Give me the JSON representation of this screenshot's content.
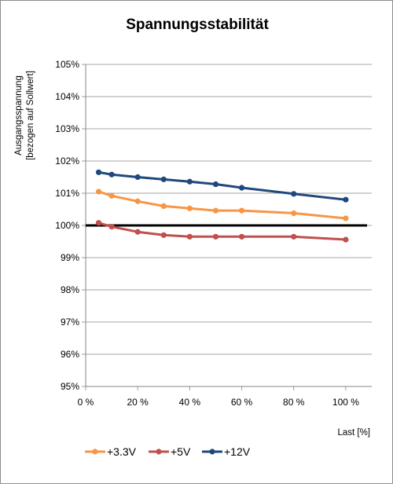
{
  "chart_data": {
    "type": "line",
    "title": "Spannungsstabilität",
    "ylabel_lines": [
      "Ausgangsspannung",
      "[bezogen auf Sollwert]"
    ],
    "xlabel": "Last [%]",
    "xlim": [
      0,
      110
    ],
    "ylim": [
      95,
      105
    ],
    "x_ticks": [
      0,
      20,
      40,
      60,
      80,
      100
    ],
    "x_tick_labels": [
      "0 %",
      "20 %",
      "40 %",
      "60 %",
      "80 %",
      "100 %"
    ],
    "y_ticks": [
      95,
      96,
      97,
      98,
      99,
      100,
      101,
      102,
      103,
      104,
      105
    ],
    "y_tick_labels": [
      "95%",
      "96%",
      "97%",
      "98%",
      "99%",
      "100%",
      "101%",
      "102%",
      "103%",
      "104%",
      "105%"
    ],
    "grid": "horizontal",
    "legend_position": "bottom",
    "reference_line": {
      "y": 100,
      "color": "#000000"
    },
    "x": [
      5,
      10,
      20,
      30,
      40,
      50,
      60,
      80,
      100
    ],
    "series": [
      {
        "name": "+3.3V",
        "color": "#f79646",
        "values": [
          101.05,
          100.92,
          100.75,
          100.6,
          100.53,
          100.46,
          100.46,
          100.38,
          100.22
        ]
      },
      {
        "name": "+5V",
        "color": "#c0504d",
        "values": [
          100.08,
          99.96,
          99.8,
          99.7,
          99.65,
          99.65,
          99.65,
          99.65,
          99.56
        ]
      },
      {
        "name": "+12V",
        "color": "#1f497d",
        "values": [
          101.65,
          101.58,
          101.5,
          101.43,
          101.36,
          101.28,
          101.17,
          100.98,
          100.8
        ]
      }
    ]
  }
}
